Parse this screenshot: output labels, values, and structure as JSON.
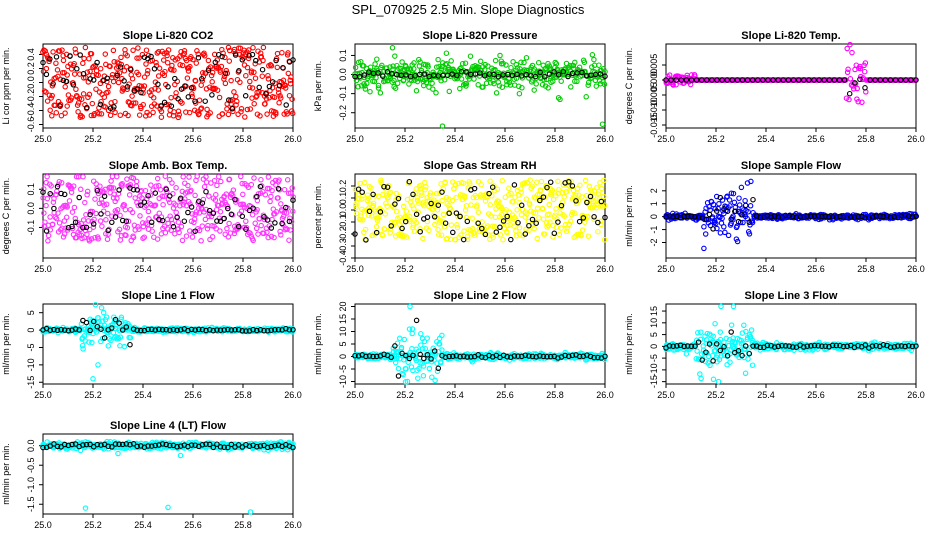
{
  "figure": {
    "title": "SPL_070925  2.5 Min. Slope Diagnostics"
  },
  "chart_data": [
    {
      "type": "scatter",
      "title": "Slope Li-820 CO2",
      "ylabel": "Li cor ppm per min.",
      "color": "#ff0000",
      "accent": "#000000",
      "xlim": [
        25.0,
        26.0
      ],
      "ylim": [
        -0.65,
        0.55
      ],
      "xticks": [
        "25.0",
        "25.2",
        "25.4",
        "25.6",
        "25.8",
        "26.0"
      ],
      "yticks": [
        {
          "v": -0.6,
          "label": "-0.6"
        },
        {
          "v": -0.4,
          "label": "-0.4"
        },
        {
          "v": -0.2,
          "label": "-0.2"
        },
        {
          "v": 0.0,
          "label": "0.0"
        },
        {
          "v": 0.2,
          "label": "0.2"
        },
        {
          "v": 0.4,
          "label": "0.4"
        }
      ],
      "pattern": "uniform",
      "spread": 0.5,
      "blackSpread": 0.4,
      "n": 460,
      "nb": 75,
      "seed": 3
    },
    {
      "type": "scatter",
      "title": "Slope Li-820 Pressure",
      "ylabel": "kPa per min.",
      "color": "#00cc00",
      "accent": "#000000",
      "xlim": [
        25.0,
        26.0
      ],
      "ylim": [
        -0.28,
        0.16
      ],
      "xticks": [
        "25.0",
        "25.2",
        "25.4",
        "25.6",
        "25.8",
        "26.0"
      ],
      "yticks": [
        {
          "v": -0.2,
          "label": "-0.2"
        },
        {
          "v": -0.1,
          "label": "-0.1"
        },
        {
          "v": 0.0,
          "label": "0.0"
        },
        {
          "v": 0.1,
          "label": "0.1"
        }
      ],
      "pattern": "normal",
      "spread": 0.06,
      "blackSpread": 0.015,
      "n": 420,
      "nb": 55,
      "seed": 7,
      "outliers": [
        [
          25.06,
          -0.09
        ],
        [
          25.35,
          -0.27
        ],
        [
          25.82,
          -0.13
        ],
        [
          25.99,
          -0.26
        ],
        [
          25.58,
          0.1
        ],
        [
          25.15,
          0.14
        ]
      ]
    },
    {
      "type": "scatter",
      "title": "Slope Li-820 Temp.",
      "ylabel": "degrees C per min.",
      "color": "#ff00ff",
      "accent": "#000000",
      "xlim": [
        25.0,
        26.0
      ],
      "ylim": [
        -0.016,
        0.012
      ],
      "xticks": [
        "25.0",
        "25.2",
        "25.4",
        "25.6",
        "25.8",
        "26.0"
      ],
      "yticks": [
        {
          "v": -0.015,
          "label": "-0.015"
        },
        {
          "v": -0.01,
          "label": "-0.010"
        },
        {
          "v": -0.005,
          "label": "-0.005"
        },
        {
          "v": 0.0,
          "label": "0.000"
        },
        {
          "v": 0.005,
          "label": "0.005"
        }
      ],
      "pattern": "temp",
      "n": 360,
      "nb": 50,
      "seed": 11
    },
    {
      "type": "scatter",
      "title": "Slope Amb. Box Temp.",
      "ylabel": "degrees C per min.",
      "color": "#ff33ff",
      "accent": "#000000",
      "xlim": [
        25.0,
        26.0
      ],
      "ylim": [
        -0.26,
        0.18
      ],
      "xticks": [
        "25.0",
        "25.2",
        "25.4",
        "25.6",
        "25.8",
        "26.0"
      ],
      "yticks": [
        {
          "v": -0.1,
          "label": "-0.1"
        },
        {
          "v": 0.0,
          "label": "0.0"
        },
        {
          "v": 0.1,
          "label": "0.1"
        }
      ],
      "pattern": "uniform",
      "spread": 0.17,
      "blackSpread": 0.12,
      "n": 460,
      "nb": 70,
      "seed": 19
    },
    {
      "type": "scatter",
      "title": "Slope Gas Stream RH",
      "ylabel": "percent per min.",
      "color": "#ffff00",
      "accent": "#000000",
      "xlim": [
        25.0,
        26.0
      ],
      "ylim": [
        -0.4,
        0.3
      ],
      "xticks": [
        "25.0",
        "25.2",
        "25.4",
        "25.6",
        "25.8",
        "26.0"
      ],
      "yticks": [
        {
          "v": -0.4,
          "label": "-0.4"
        },
        {
          "v": -0.3,
          "label": "-0.3"
        },
        {
          "v": -0.2,
          "label": "-0.2"
        },
        {
          "v": -0.1,
          "label": "-0.1"
        },
        {
          "v": 0.0,
          "label": "0.0"
        },
        {
          "v": 0.1,
          "label": "0.1"
        },
        {
          "v": 0.2,
          "label": "0.2"
        }
      ],
      "pattern": "uniform",
      "spread": 0.25,
      "blackSpread": 0.25,
      "n": 460,
      "nb": 70,
      "seed": 23
    },
    {
      "type": "scatter",
      "title": "Slope Sample Flow",
      "ylabel": "ml/min per min.",
      "color": "#0000ff",
      "accent": "#000000",
      "xlim": [
        25.0,
        26.0
      ],
      "ylim": [
        -3.2,
        3.3
      ],
      "xticks": [
        "25.0",
        "25.2",
        "25.4",
        "25.6",
        "25.8",
        "26.0"
      ],
      "yticks": [
        {
          "v": -2,
          "label": "-2"
        },
        {
          "v": -1,
          "label": "-1"
        },
        {
          "v": 0,
          "label": "0"
        },
        {
          "v": 1,
          "label": "1"
        },
        {
          "v": 2,
          "label": "2"
        }
      ],
      "pattern": "flow",
      "spread": 0.15,
      "burst": [
        25.15,
        25.35,
        1.6
      ],
      "n": 440,
      "nb": 70,
      "seed": 29
    },
    {
      "type": "scatter",
      "title": "Slope Line 1 Flow",
      "ylabel": "ml/min per min.",
      "color": "#00ffff",
      "accent": "#000000",
      "xlim": [
        25.0,
        26.0
      ],
      "ylim": [
        -15.5,
        7.5
      ],
      "xticks": [
        "25.0",
        "25.2",
        "25.4",
        "25.6",
        "25.8",
        "26.0"
      ],
      "yticks": [
        {
          "v": -15,
          "label": "-15"
        },
        {
          "v": -10,
          "label": "-10"
        },
        {
          "v": -5,
          "label": "-5"
        },
        {
          "v": 0,
          "label": "0"
        },
        {
          "v": 5,
          "label": "5"
        }
      ],
      "pattern": "flow",
      "spread": 0.5,
      "burst": [
        25.15,
        25.35,
        4
      ],
      "n": 440,
      "nb": 70,
      "seed": 31,
      "outliers": [
        [
          25.2,
          -14
        ],
        [
          25.22,
          -10
        ],
        [
          25.21,
          7.3
        ],
        [
          25.25,
          3
        ]
      ]
    },
    {
      "type": "scatter",
      "title": "Slope Line 2 Flow",
      "ylabel": "ml/min per min.",
      "color": "#00ffff",
      "accent": "#000000",
      "xlim": [
        25.0,
        26.0
      ],
      "ylim": [
        -11,
        21
      ],
      "xticks": [
        "25.0",
        "25.2",
        "25.4",
        "25.6",
        "25.8",
        "26.0"
      ],
      "yticks": [
        {
          "v": -10,
          "label": "-10"
        },
        {
          "v": -5,
          "label": "-5"
        },
        {
          "v": 0,
          "label": "0"
        },
        {
          "v": 5,
          "label": "5"
        },
        {
          "v": 10,
          "label": "10"
        },
        {
          "v": 15,
          "label": "15"
        },
        {
          "v": 20,
          "label": "20"
        }
      ],
      "pattern": "flow",
      "spread": 1,
      "burst": [
        25.15,
        25.35,
        8
      ],
      "n": 440,
      "nb": 70,
      "seed": 37,
      "outliers": [
        [
          25.22,
          20
        ],
        [
          25.23,
          11
        ],
        [
          25.21,
          -10
        ]
      ]
    },
    {
      "type": "scatter",
      "title": "Slope Line 3 Flow",
      "ylabel": "ml/min per min.",
      "color": "#00ffff",
      "accent": "#000000",
      "xlim": [
        25.0,
        26.0
      ],
      "ylim": [
        -16,
        18
      ],
      "xticks": [
        "25.0",
        "25.2",
        "25.4",
        "25.6",
        "25.8",
        "26.0"
      ],
      "yticks": [
        {
          "v": -15,
          "label": "-15"
        },
        {
          "v": -10,
          "label": "-10"
        },
        {
          "v": -5,
          "label": "-5"
        },
        {
          "v": 0,
          "label": "0"
        },
        {
          "v": 5,
          "label": "5"
        },
        {
          "v": 10,
          "label": "10"
        },
        {
          "v": 15,
          "label": "15"
        }
      ],
      "pattern": "flow",
      "spread": 1.2,
      "burst": [
        25.12,
        25.35,
        8
      ],
      "n": 440,
      "nb": 70,
      "seed": 41,
      "outliers": [
        [
          25.22,
          17
        ],
        [
          25.27,
          17
        ],
        [
          25.21,
          -15
        ],
        [
          25.19,
          -14
        ]
      ]
    },
    {
      "type": "scatter",
      "title": "Slope Line 4 (LT) Flow",
      "ylabel": "ml/min per min.",
      "color": "#00ffff",
      "accent": "#000000",
      "xlim": [
        25.0,
        26.0
      ],
      "ylim": [
        -1.75,
        0.3
      ],
      "xticks": [
        "25.0",
        "25.2",
        "25.4",
        "25.6",
        "25.8",
        "26.0"
      ],
      "yticks": [
        {
          "v": -1.5,
          "label": "-1.5"
        },
        {
          "v": -1.0,
          "label": "-1.0"
        },
        {
          "v": -0.5,
          "label": "-0.5"
        },
        {
          "v": 0.0,
          "label": "0.0"
        }
      ],
      "pattern": "normal",
      "spread": 0.07,
      "blackSpread": 0.05,
      "n": 440,
      "nb": 70,
      "seed": 43,
      "outliers": [
        [
          25.17,
          -1.6
        ],
        [
          25.5,
          -1.58
        ],
        [
          25.83,
          -1.7
        ],
        [
          25.3,
          -0.2
        ],
        [
          25.55,
          -0.25
        ]
      ]
    }
  ]
}
